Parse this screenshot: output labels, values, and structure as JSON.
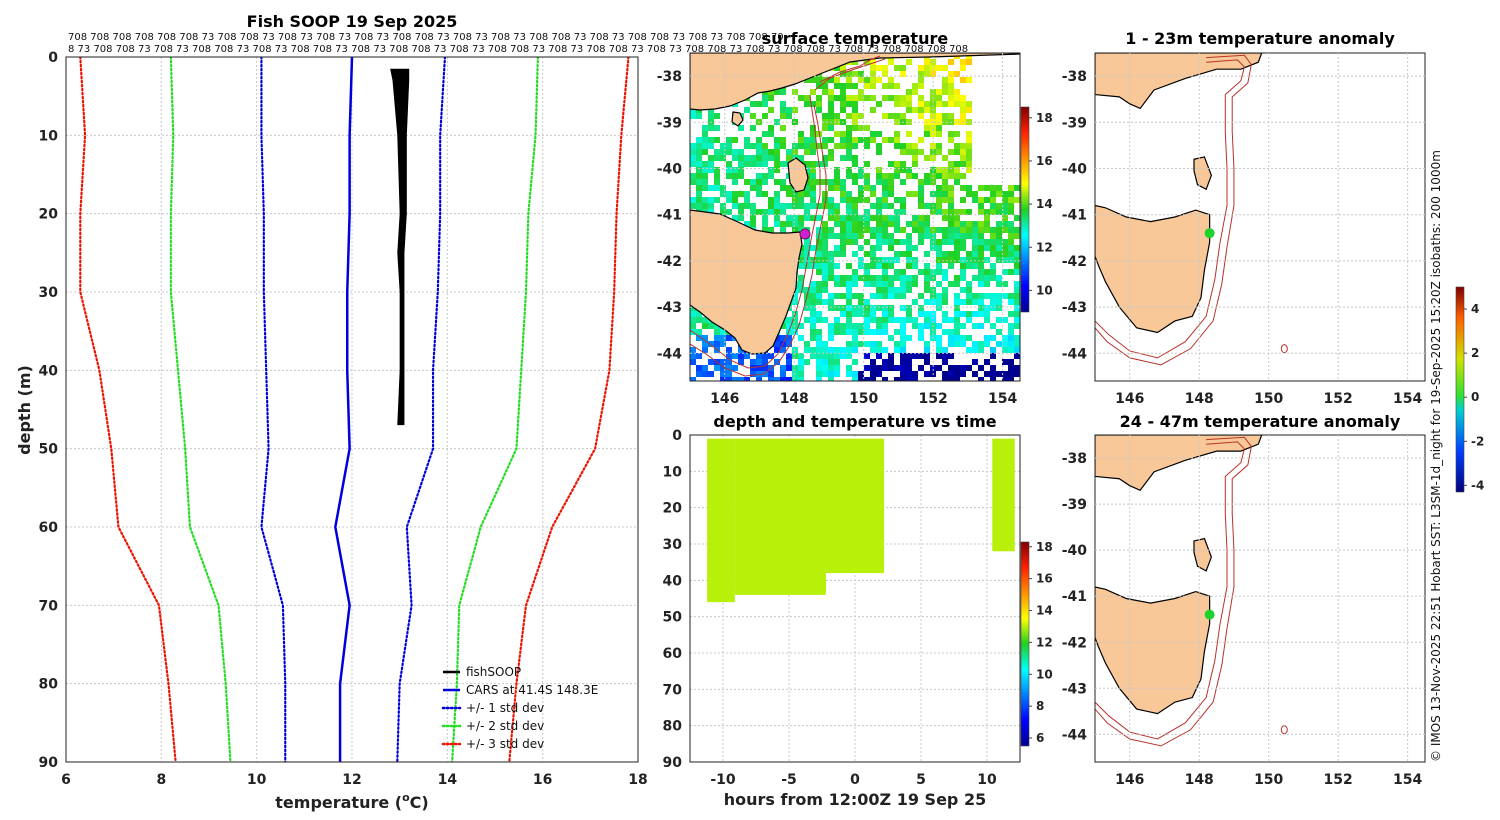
{
  "footer_text": "© IMOS 13-Nov-2025 22:51 Hobart SST: L3SM-1d_night for 19-Sep-2025 15:20Z isobaths: 200  1000m",
  "colors": {
    "fish": "#000000",
    "cars": "#0000dd",
    "sd1": "#0000dd",
    "sd2": "#22dd22",
    "sd3": "#ee1100",
    "land": "#f8c898",
    "isobath": "#b8322a"
  },
  "station_labels": {
    "row1": "708 708 708 708 708 708 73 708 708 73 708 73 708 73 708 73 708 708 73 708 73 708 73 708 708 73 708 73 708 708 73 708 73 708 708 70",
    "row2": "8 73 708 708 73 708 73 708 708 73 708 73 708 708 73 708 73 708 708 73 708 73 708 708 73 708 73 708 708 73 708 73 708 708 73 708 73 708 708 73 708 73 708 708 708 708"
  },
  "chart_data": [
    {
      "type": "line",
      "title": "Fish SOOP 19 Sep 2025",
      "xlabel": "temperature (°C)",
      "xlabel_main": "temperature (",
      "xlabel_sup": "o",
      "xlabel_end": "C)",
      "ylabel": "depth (m)",
      "xlim": [
        6,
        18
      ],
      "ylim": [
        0,
        90
      ],
      "y_reversed": true,
      "xticks": [
        6,
        8,
        10,
        12,
        14,
        16,
        18
      ],
      "yticks": [
        0,
        10,
        20,
        30,
        40,
        50,
        60,
        70,
        80,
        90
      ],
      "depths": [
        0,
        10,
        20,
        30,
        40,
        50,
        60,
        70,
        80,
        90
      ],
      "series": [
        {
          "name": "fishSOOP",
          "style": "band",
          "depth": [
            1.5,
            3,
            10,
            20,
            25,
            30,
            40,
            47
          ],
          "t_min": [
            12.8,
            12.85,
            12.95,
            13.0,
            12.95,
            13.0,
            13.0,
            12.95
          ],
          "t_max": [
            13.2,
            13.2,
            13.15,
            13.15,
            13.1,
            13.1,
            13.1,
            13.1
          ]
        },
        {
          "name": "CARS at 41.4S 148.3E",
          "style": "solid",
          "values": [
            12.0,
            11.95,
            11.95,
            11.9,
            11.9,
            11.95,
            11.65,
            11.95,
            11.75,
            11.75
          ]
        },
        {
          "name": "+/- 1 std dev (low)",
          "style": "dot",
          "color": "sd1",
          "values": [
            10.1,
            10.1,
            10.15,
            10.15,
            10.2,
            10.25,
            10.1,
            10.55,
            10.6,
            10.6
          ]
        },
        {
          "name": "+/- 1 std dev (high)",
          "style": "dot",
          "color": "sd1",
          "values": [
            13.95,
            13.85,
            13.85,
            13.8,
            13.7,
            13.7,
            13.15,
            13.25,
            13.0,
            12.95
          ]
        },
        {
          "name": "+/- 2 std dev (low)",
          "style": "dot",
          "color": "sd2",
          "values": [
            8.2,
            8.25,
            8.2,
            8.2,
            8.35,
            8.5,
            8.6,
            9.2,
            9.35,
            9.45
          ]
        },
        {
          "name": "+/- 2 std dev (high)",
          "style": "dot",
          "color": "sd2",
          "values": [
            15.9,
            15.85,
            15.7,
            15.65,
            15.55,
            15.45,
            14.7,
            14.25,
            14.2,
            14.1
          ]
        },
        {
          "name": "+/- 3 std dev (low)",
          "style": "dot",
          "color": "sd3",
          "values": [
            6.3,
            6.4,
            6.3,
            6.3,
            6.7,
            6.95,
            7.1,
            7.95,
            8.15,
            8.3
          ]
        },
        {
          "name": "+/- 3 std dev (high)",
          "style": "dot",
          "color": "sd3",
          "values": [
            17.8,
            17.65,
            17.55,
            17.5,
            17.4,
            17.1,
            16.2,
            15.65,
            15.45,
            15.3
          ]
        }
      ],
      "legend": [
        "fishSOOP",
        "CARS at 41.4S 148.3E",
        "+/- 1 std dev",
        "+/- 2 std dev",
        "+/- 3 std dev"
      ],
      "legend_colors": [
        "fish",
        "cars",
        "sd1",
        "sd2",
        "sd3"
      ],
      "legend_styles": [
        "solid",
        "solid",
        "dot",
        "dot",
        "dot"
      ],
      "legend_position": "bottom-right"
    },
    {
      "type": "heatmap",
      "title": "surface temperature",
      "xlim": [
        145,
        154.5
      ],
      "ylim": [
        -44.6,
        -37.5
      ],
      "xticks": [
        146,
        148,
        150,
        152,
        154
      ],
      "yticks": [
        -38,
        -39,
        -40,
        -41,
        -42,
        -43,
        -44
      ],
      "colorbar": {
        "min": 9,
        "max": 18.5,
        "ticks": [
          10,
          12,
          14,
          16,
          18
        ]
      },
      "marker": {
        "lon": 148.3,
        "lat": -41.4,
        "color": "#d020d0"
      }
    },
    {
      "type": "scatter",
      "title": "depth and temperature vs time",
      "xlabel": "hours from 12:00Z 19 Sep 25",
      "xlim": [
        -12.5,
        12.5
      ],
      "ylim": [
        0,
        90
      ],
      "y_reversed": true,
      "xticks": [
        -10,
        -5,
        0,
        5,
        10
      ],
      "yticks": [
        0,
        10,
        20,
        30,
        40,
        50,
        60,
        70,
        80,
        90
      ],
      "segments": [
        {
          "t_start": -11.2,
          "t_end": -9.1,
          "depth_min": 1,
          "depth_max": 46
        },
        {
          "t_start": -9.1,
          "t_end": -2.2,
          "depth_min": 1,
          "depth_max": 44
        },
        {
          "t_start": -2.2,
          "t_end": 2.2,
          "depth_min": 1,
          "depth_max": 38
        },
        {
          "t_start": 10.4,
          "t_end": 12.1,
          "depth_min": 1,
          "depth_max": 32
        }
      ],
      "point_temperature": 13.0,
      "colorbar": {
        "min": 5.5,
        "max": 18.3,
        "ticks": [
          6,
          8,
          10,
          12,
          14,
          16,
          18
        ]
      }
    },
    {
      "type": "heatmap",
      "title": "1 - 23m temperature anomaly",
      "xlim": [
        145,
        154.5
      ],
      "ylim": [
        -44.6,
        -37.5
      ],
      "xticks": [
        146,
        148,
        150,
        152,
        154
      ],
      "yticks": [
        -38,
        -39,
        -40,
        -41,
        -42,
        -43,
        -44
      ],
      "points": [
        {
          "lon": 148.3,
          "lat": -41.4,
          "anomaly": 0.3
        }
      ]
    },
    {
      "type": "heatmap",
      "title": "24 - 47m temperature anomaly",
      "xlim": [
        145,
        154.5
      ],
      "ylim": [
        -44.6,
        -37.5
      ],
      "xticks": [
        146,
        148,
        150,
        152,
        154
      ],
      "yticks": [
        -38,
        -39,
        -40,
        -41,
        -42,
        -43,
        -44
      ],
      "points": [
        {
          "lon": 148.3,
          "lat": -41.4,
          "anomaly": 0.3
        }
      ],
      "colorbar": {
        "min": -4.3,
        "max": 5.0,
        "ticks": [
          -4,
          -2,
          0,
          2,
          4
        ]
      }
    }
  ]
}
